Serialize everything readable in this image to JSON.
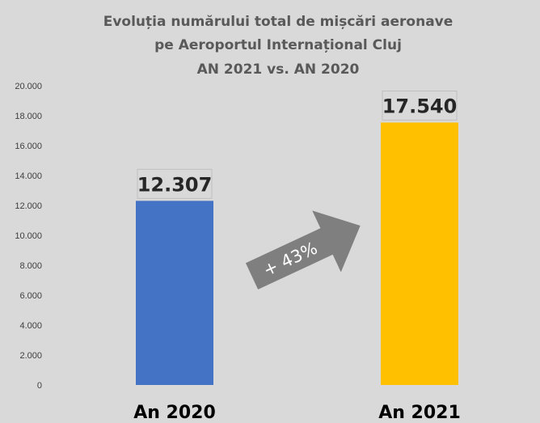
{
  "title_lines": [
    "Evoluția numărului total de mișcări aeronave",
    "pe Aeroportul Internațional Cluj",
    "AN 2021 vs. AN 2020"
  ],
  "annotation": "+ 43%",
  "colors": {
    "background": "#d9d9d9",
    "bar_2020": "#4472c4",
    "bar_2021": "#ffc000",
    "arrow": "#7f7f7f"
  },
  "chart_data": {
    "type": "bar",
    "title": "Evoluția numărului total de mișcări aeronave pe Aeroportul Internațional Cluj AN 2021 vs. AN 2020",
    "categories": [
      "An 2020",
      "An 2021"
    ],
    "values": [
      12307,
      17540
    ],
    "data_labels": [
      "12.307",
      "17.540"
    ],
    "ylim": [
      0,
      20000
    ],
    "yticks": [
      0,
      2000,
      4000,
      6000,
      8000,
      10000,
      12000,
      14000,
      16000,
      18000,
      20000
    ],
    "ytick_labels": [
      "0",
      "2.000",
      "4.000",
      "6.000",
      "8.000",
      "10.000",
      "12.000",
      "14.000",
      "16.000",
      "18.000",
      "20.000"
    ],
    "grid": false,
    "legend": "none",
    "xlabel": "",
    "ylabel": ""
  }
}
